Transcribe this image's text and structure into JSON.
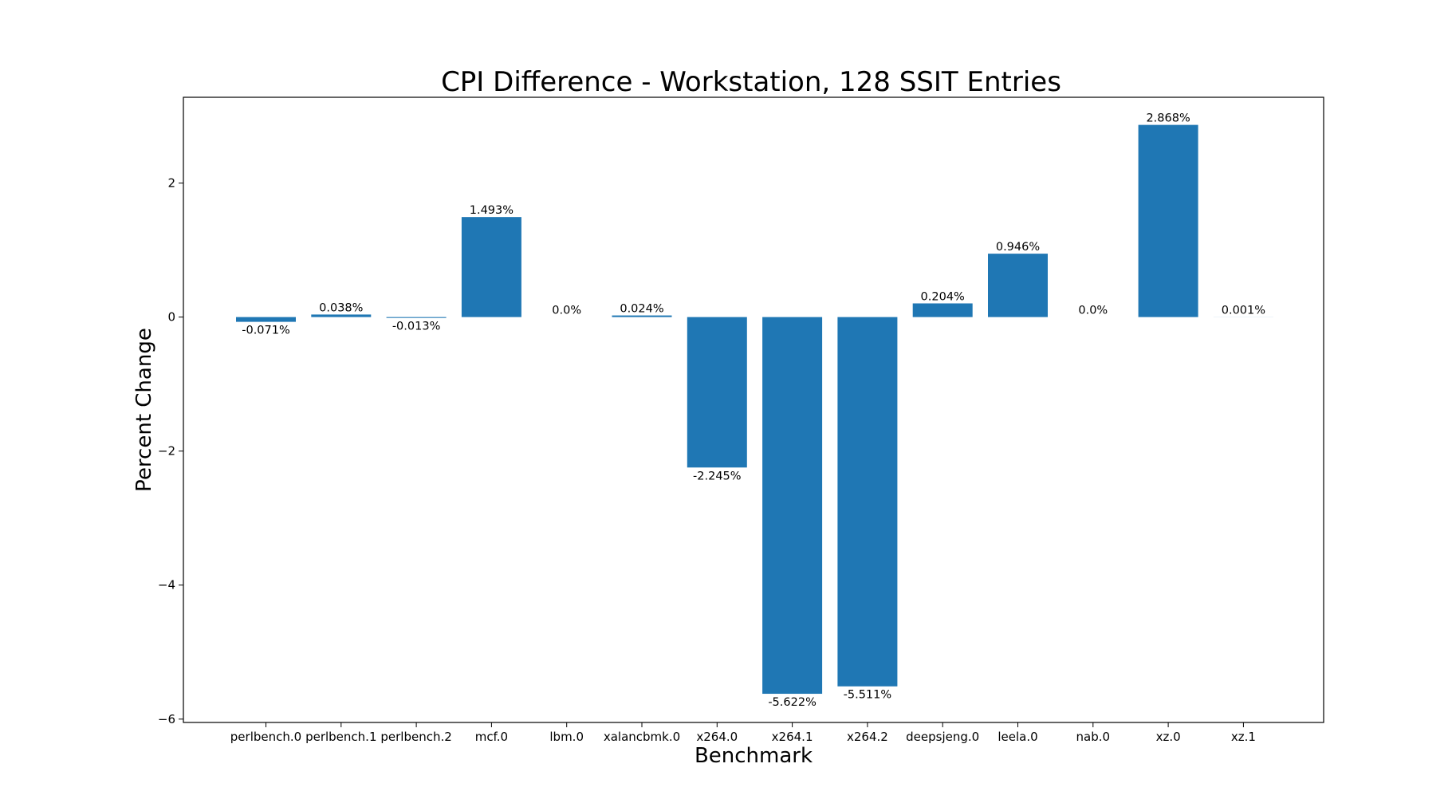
{
  "chart_data": {
    "type": "bar",
    "title": "CPI Difference - Workstation, 128 SSIT Entries",
    "xlabel": "Benchmark",
    "ylabel": "Percent Change",
    "categories": [
      "perlbench.0",
      "perlbench.1",
      "perlbench.2",
      "mcf.0",
      "lbm.0",
      "xalancbmk.0",
      "x264.0",
      "x264.1",
      "x264.2",
      "deepsjeng.0",
      "leela.0",
      "nab.0",
      "xz.0",
      "xz.1"
    ],
    "values": [
      -0.071,
      0.038,
      -0.013,
      1.493,
      0.0,
      0.024,
      -2.245,
      -5.622,
      -5.511,
      0.204,
      0.946,
      0.0,
      2.868,
      0.001
    ],
    "data_labels": [
      "-0.071%",
      "0.038%",
      "-0.013%",
      "1.493%",
      "0.0%",
      "0.024%",
      "-2.245%",
      "-5.622%",
      "-5.511%",
      "0.204%",
      "0.946%",
      "0.0%",
      "2.868%",
      "0.001%"
    ],
    "yticks": [
      2,
      0,
      -2,
      -4,
      -6
    ],
    "ytick_labels": [
      "2",
      "0",
      "−2",
      "−4",
      "−6"
    ],
    "ylim": [
      -6.05,
      3.28
    ],
    "bar_color": "#1f77b4",
    "grid": false,
    "legend": "none"
  }
}
